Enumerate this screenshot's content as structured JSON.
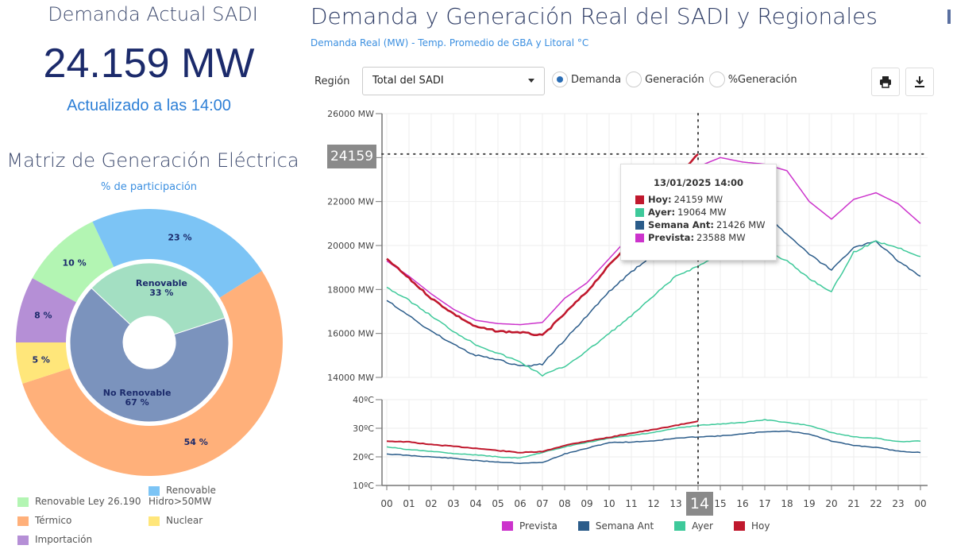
{
  "left": {
    "title": "Demanda Actual SADI",
    "value": "24.159 MW",
    "updated": "Actualizado a las 14:00",
    "matriz_title": "Matriz de Generación Eléctrica",
    "matriz_subtitle": "% de participación"
  },
  "header": {
    "title": "Demanda y Generación Real del SADI y Regionales",
    "subtitle": "Demanda Real (MW) - Temp. Promedio de GBA y Litoral °C"
  },
  "controls": {
    "region_label": "Región",
    "region_value": "Total del SADI",
    "radios": [
      {
        "label": "Demanda",
        "selected": true
      },
      {
        "label": "Generación",
        "selected": false
      },
      {
        "label": "%Generación",
        "selected": false
      }
    ],
    "print_icon": "print-icon",
    "download_icon": "download-icon"
  },
  "crosshair": {
    "value_label": "24159",
    "hour_label": "14"
  },
  "tooltip": {
    "title": "13/01/2025 14:00",
    "rows": [
      {
        "label": "Hoy:",
        "value": "24159 MW",
        "color": "#c0182d"
      },
      {
        "label": "Ayer:",
        "value": "19064 MW",
        "color": "#3ec99a"
      },
      {
        "label": "Semana Ant:",
        "value": "21426 MW",
        "color": "#2b5c8a"
      },
      {
        "label": "Prevista:",
        "value": "23588 MW",
        "color": "#cc33cc"
      }
    ]
  },
  "chart_data": [
    {
      "type": "pie",
      "title": "Matriz de Generación Eléctrica",
      "subtitle": "% de participación",
      "outer": [
        {
          "name": "Renovable Ley 26.190",
          "value": 10,
          "label": "10 %",
          "color": "#b3f5b3"
        },
        {
          "name": "Renovable Hidro>50MW",
          "value": 23,
          "label": "23 %",
          "color": "#7cc4f5"
        },
        {
          "name": "Térmico",
          "value": 54,
          "label": "54 %",
          "color": "#ffb07a"
        },
        {
          "name": "Nuclear",
          "value": 5,
          "label": "5 %",
          "color": "#ffe67a"
        },
        {
          "name": "Importación",
          "value": 8,
          "label": "8 %",
          "color": "#b58fd6"
        }
      ],
      "inner": [
        {
          "name": "Renovable",
          "value": 33,
          "label": "33 %",
          "color": "#a3dfc2"
        },
        {
          "name": "No Renovable",
          "value": 67,
          "label": "67 %",
          "color": "#7b93bd"
        }
      ],
      "legend": [
        "Renovable Ley 26.190",
        "Renovable Hidro>50MW",
        "Térmico",
        "Nuclear",
        "Importación"
      ]
    },
    {
      "type": "line",
      "title": "Demanda Real (MW)",
      "x": [
        0,
        1,
        2,
        3,
        4,
        5,
        6,
        7,
        8,
        9,
        10,
        11,
        12,
        13,
        14,
        15,
        16,
        17,
        18,
        19,
        20,
        21,
        22,
        23,
        24
      ],
      "xtick_labels": [
        "00",
        "01",
        "02",
        "03",
        "04",
        "05",
        "06",
        "07",
        "08",
        "09",
        "10",
        "11",
        "12",
        "13",
        "14",
        "15",
        "16",
        "17",
        "18",
        "19",
        "20",
        "21",
        "22",
        "23",
        "00"
      ],
      "ylim": [
        14000,
        26000
      ],
      "yticks": [
        14000,
        16000,
        18000,
        20000,
        22000,
        24000,
        26000
      ],
      "ytick_labels": [
        "14000 MW",
        "16000 MW",
        "18000 MW",
        "20000 MW",
        "22000 MW",
        "24000 MW",
        "26000 MW"
      ],
      "series": [
        {
          "name": "Prevista",
          "color": "#cc33cc",
          "values": [
            19300,
            18600,
            17800,
            17100,
            16600,
            16450,
            16400,
            16500,
            17600,
            18300,
            19400,
            20500,
            21700,
            23000,
            23588,
            24000,
            23800,
            23700,
            23400,
            22000,
            21200,
            22100,
            22400,
            21900,
            21000
          ]
        },
        {
          "name": "Semana Ant",
          "color": "#2b5c8a",
          "values": [
            17500,
            16800,
            16100,
            15500,
            15000,
            14800,
            14500,
            14600,
            15700,
            16800,
            17900,
            18800,
            19600,
            20300,
            21426,
            21900,
            21700,
            21500,
            20500,
            19600,
            18900,
            19900,
            20200,
            19300,
            18600
          ]
        },
        {
          "name": "Ayer",
          "color": "#3ec99a",
          "values": [
            18100,
            17500,
            16800,
            16100,
            15500,
            15100,
            14700,
            14100,
            14500,
            15200,
            16000,
            16800,
            17700,
            18600,
            19064,
            19600,
            19900,
            19800,
            19300,
            18500,
            17900,
            19700,
            20200,
            19900,
            19500
          ]
        },
        {
          "name": "Hoy",
          "color": "#c0182d",
          "values": [
            19400,
            18500,
            17600,
            16900,
            16300,
            16100,
            16050,
            15900,
            16900,
            17900,
            19100,
            20200,
            21600,
            23100,
            24159
          ]
        }
      ],
      "crosshair": {
        "x": 14,
        "y": 24159
      }
    },
    {
      "type": "line",
      "title": "Temp. Promedio de GBA y Litoral °C",
      "x": [
        0,
        1,
        2,
        3,
        4,
        5,
        6,
        7,
        8,
        9,
        10,
        11,
        12,
        13,
        14,
        15,
        16,
        17,
        18,
        19,
        20,
        21,
        22,
        23,
        24
      ],
      "ylim": [
        10,
        40
      ],
      "yticks": [
        10,
        20,
        30,
        40
      ],
      "ytick_labels": [
        "10ºC",
        "20ºC",
        "30ºC",
        "40ºC"
      ],
      "series": [
        {
          "name": "Semana Ant",
          "color": "#2b5c8a",
          "values": [
            21,
            20.5,
            20,
            19.5,
            18.7,
            18.2,
            17.8,
            18,
            21,
            23,
            25,
            25.2,
            25.6,
            26.5,
            27,
            27.3,
            28,
            28.8,
            29,
            28,
            25.5,
            24,
            23.3,
            22,
            21.5
          ]
        },
        {
          "name": "Ayer",
          "color": "#3ec99a",
          "values": [
            23.5,
            22.5,
            22,
            21.2,
            20.7,
            20,
            19.6,
            21.5,
            23.5,
            25,
            26.5,
            27.5,
            28.5,
            30,
            31,
            31.5,
            32,
            33,
            32,
            31,
            28.5,
            27,
            26.5,
            25.3,
            25.5
          ]
        },
        {
          "name": "Hoy",
          "color": "#c0182d",
          "values": [
            25.5,
            25.2,
            24.3,
            23.7,
            23,
            22.2,
            21.5,
            21.8,
            24,
            25.5,
            26.8,
            28.3,
            29.5,
            31,
            32.5
          ]
        }
      ],
      "legend": [
        "Prevista",
        "Semana Ant",
        "Ayer",
        "Hoy"
      ],
      "legend_position": "bottom"
    }
  ]
}
